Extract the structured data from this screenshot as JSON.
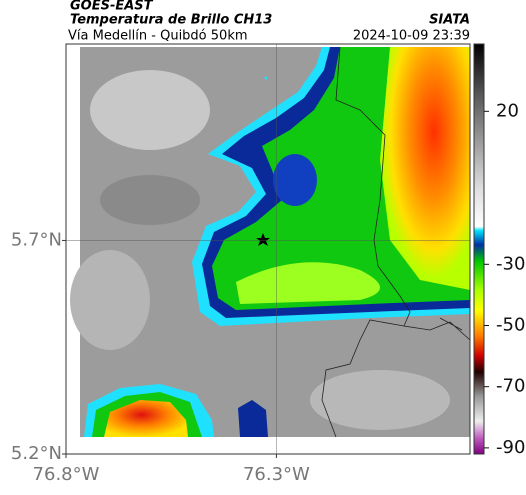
{
  "header": {
    "source": "GOES-EAST",
    "product": "Temperatura de Brillo CH13",
    "region": "Vía Medellín - Quibdó 50km",
    "agency": "SIATA",
    "timestamp": "2024-10-09 23:39"
  },
  "map": {
    "xlim": [
      -76.8,
      -75.84
    ],
    "ylim": [
      5.2,
      6.16
    ],
    "lon_ticks": [
      {
        "value": -76.8,
        "label": "76.8°W"
      },
      {
        "value": -76.3,
        "label": "76.3°W"
      }
    ],
    "lat_ticks": [
      {
        "value": 5.7,
        "label": "5.7°N"
      },
      {
        "value": 5.2,
        "label": "5.2°N"
      }
    ],
    "grid": true
  },
  "colorbar": {
    "lim": [
      -92,
      42
    ],
    "ticks": [
      20,
      -30,
      -50,
      -70,
      -90
    ]
  }
}
